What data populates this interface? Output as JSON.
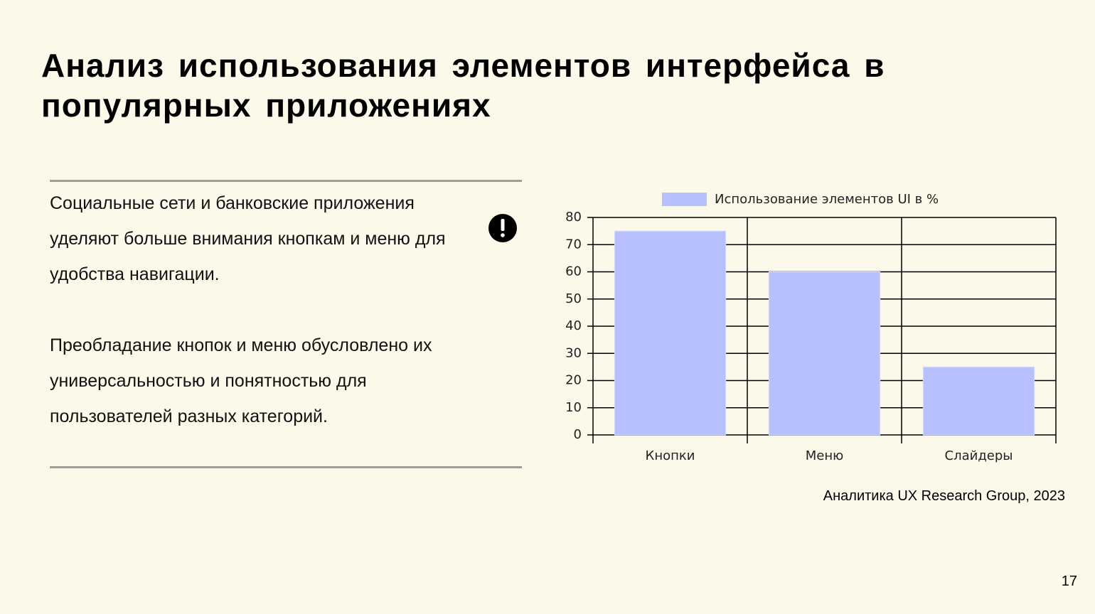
{
  "slide": {
    "title": "Анализ использования элементов интерфейса в популярных приложениях",
    "paragraphs": [
      "Социальные сети и банковские приложения уделяют больше внимания кнопкам и меню для удобства навигации.",
      "Преобладание кнопок и меню обусловлено их универсальностью и понятностью для пользователей разных категорий."
    ],
    "source": "Аналитика UX Research Group, 2023",
    "page_number": 17
  },
  "chart_data": {
    "type": "bar",
    "categories": [
      "Кнопки",
      "Меню",
      "Слайдеры"
    ],
    "series": [
      {
        "name": "Использование элементов UI в %",
        "color": "#b8c0ff",
        "values": [
          75,
          60,
          25
        ]
      }
    ],
    "ylim": [
      0,
      80
    ],
    "yticks": [
      0,
      10,
      20,
      30,
      40,
      50,
      60,
      70,
      80
    ],
    "grid": true,
    "legend": "top"
  }
}
